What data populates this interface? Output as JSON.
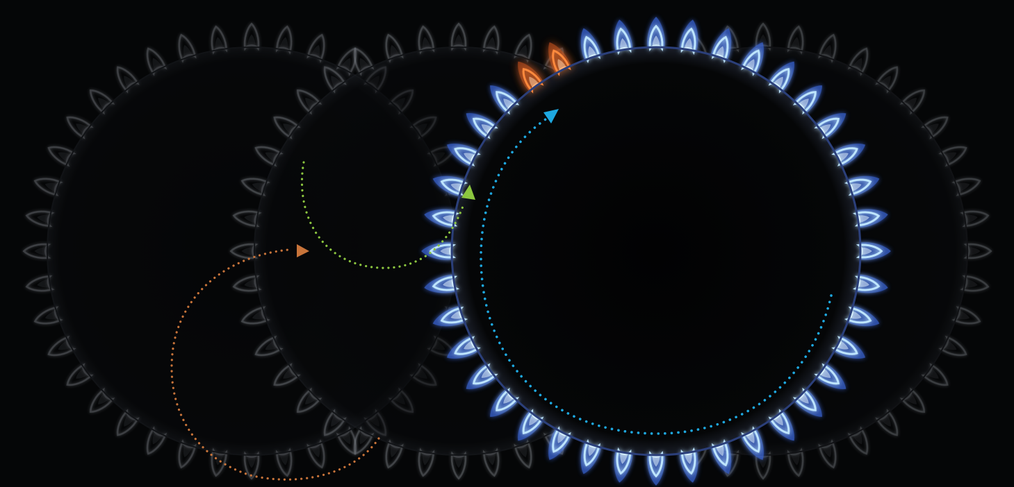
{
  "scene": {
    "subject": "gas-burner-rings",
    "background_color": "#050607",
    "burners": [
      {
        "name": "ghost-burner-left",
        "state": "faded",
        "flame_color": "#8a8f96",
        "flame_count": 40
      },
      {
        "name": "ghost-burner-middle",
        "state": "faded",
        "flame_color": "#8a8f96",
        "flame_count": 40
      },
      {
        "name": "ghost-burner-right",
        "state": "faded",
        "flame_color": "#8a8f96",
        "flame_count": 40
      },
      {
        "name": "active-burner",
        "state": "lit",
        "flame_color": "#bfe6ff",
        "flame_glow": "#3a66d9",
        "flame_count": 40,
        "accent_flame_color": "#ff8a3d"
      }
    ],
    "arrows": [
      {
        "name": "orange-dotted-arrow",
        "color": "#c8743a"
      },
      {
        "name": "green-dotted-arrow",
        "color": "#8cc63f"
      },
      {
        "name": "blue-dotted-arrow",
        "color": "#1ea8e0"
      }
    ]
  }
}
